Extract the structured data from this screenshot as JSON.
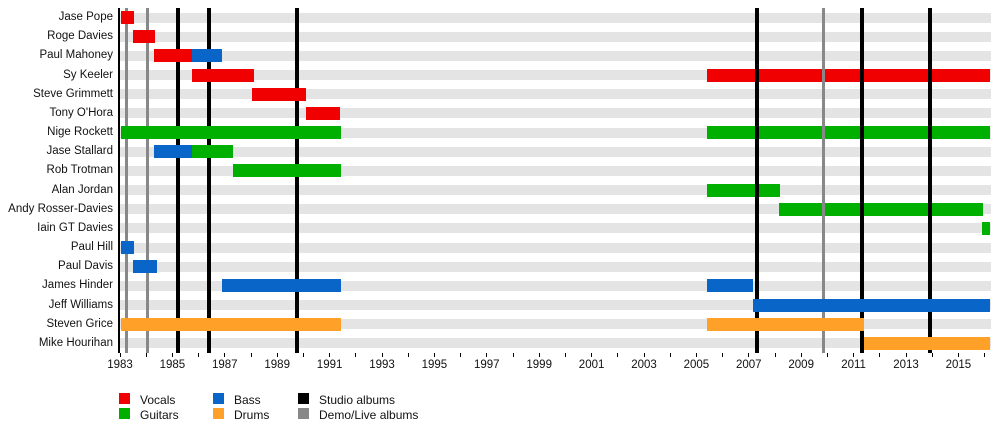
{
  "chart_data": {
    "type": "gantt",
    "subtype": "band-members-timeline",
    "title": "",
    "x_axis": {
      "tick_start": 1983,
      "tick_end": 2016,
      "tick_every_years": 1,
      "labeled_years": [
        1983,
        1985,
        1987,
        1989,
        1991,
        1993,
        1995,
        1997,
        1999,
        2001,
        2003,
        2005,
        2007,
        2009,
        2011,
        2013,
        2015
      ],
      "axis_range": [
        1983.0,
        2016.2
      ]
    },
    "roles": {
      "Vocals": "#f00000",
      "Guitars": "#00b000",
      "Bass": "#0966c8",
      "Drums": "#ffa129"
    },
    "line_colors": {
      "studio": "#000000",
      "demo_live": "#888888"
    },
    "stripe_color": "#e4e4e4",
    "members": [
      {
        "name": "Jase Pope",
        "bars": [
          {
            "from": 1983.05,
            "till": 1983.55,
            "role": "Vocals"
          }
        ]
      },
      {
        "name": "Roge Davies",
        "bars": [
          {
            "from": 1983.5,
            "till": 1984.35,
            "role": "Vocals"
          }
        ]
      },
      {
        "name": "Paul Mahoney",
        "bars": [
          {
            "from": 1984.3,
            "till": 1985.75,
            "role": "Vocals"
          },
          {
            "from": 1985.75,
            "till": 1986.9,
            "role": "Bass"
          }
        ]
      },
      {
        "name": "Sy Keeler",
        "bars": [
          {
            "from": 1985.75,
            "till": 1988.1,
            "role": "Vocals"
          },
          {
            "from": 2005.4,
            "till": 2016.2,
            "role": "Vocals"
          }
        ]
      },
      {
        "name": "Steve Grimmett",
        "bars": [
          {
            "from": 1988.05,
            "till": 1990.1,
            "role": "Vocals"
          }
        ]
      },
      {
        "name": "Tony O'Hora",
        "bars": [
          {
            "from": 1990.1,
            "till": 1991.4,
            "role": "Vocals"
          }
        ]
      },
      {
        "name": "Nige Rockett",
        "bars": [
          {
            "from": 1983.05,
            "till": 1991.45,
            "role": "Guitars"
          },
          {
            "from": 2005.4,
            "till": 2016.2,
            "role": "Guitars"
          }
        ]
      },
      {
        "name": "Jase Stallard",
        "bars": [
          {
            "from": 1984.3,
            "till": 1985.75,
            "role": "Bass"
          },
          {
            "from": 1985.75,
            "till": 1987.3,
            "role": "Guitars"
          }
        ]
      },
      {
        "name": "Rob Trotman",
        "bars": [
          {
            "from": 1987.3,
            "till": 1991.45,
            "role": "Guitars"
          }
        ]
      },
      {
        "name": "Alan Jordan",
        "bars": [
          {
            "from": 2005.4,
            "till": 2008.2,
            "role": "Guitars"
          }
        ]
      },
      {
        "name": "Andy Rosser-Davies",
        "bars": [
          {
            "from": 2008.15,
            "till": 2015.95,
            "role": "Guitars"
          }
        ]
      },
      {
        "name": "Iain GT Davies",
        "bars": [
          {
            "from": 2015.9,
            "till": 2016.2,
            "role": "Guitars"
          }
        ]
      },
      {
        "name": "Paul Hill",
        "bars": [
          {
            "from": 1983.05,
            "till": 1983.55,
            "role": "Bass"
          }
        ]
      },
      {
        "name": "Paul Davis",
        "bars": [
          {
            "from": 1983.5,
            "till": 1984.4,
            "role": "Bass"
          }
        ]
      },
      {
        "name": "James Hinder",
        "bars": [
          {
            "from": 1986.9,
            "till": 1991.45,
            "role": "Bass"
          },
          {
            "from": 2005.4,
            "till": 2007.15,
            "role": "Bass"
          }
        ]
      },
      {
        "name": "Jeff Williams",
        "bars": [
          {
            "from": 2007.15,
            "till": 2016.2,
            "role": "Bass"
          }
        ]
      },
      {
        "name": "Steven Grice",
        "bars": [
          {
            "from": 1983.05,
            "till": 1991.45,
            "role": "Drums"
          },
          {
            "from": 2005.4,
            "till": 2011.4,
            "role": "Drums"
          }
        ]
      },
      {
        "name": "Mike Hourihan",
        "bars": [
          {
            "from": 2011.4,
            "till": 2016.2,
            "role": "Drums"
          }
        ]
      }
    ],
    "album_lines": [
      {
        "year": 1983.25,
        "type": "demo_live"
      },
      {
        "year": 1984.05,
        "type": "demo_live"
      },
      {
        "year": 1985.2,
        "type": "studio"
      },
      {
        "year": 1986.4,
        "type": "studio"
      },
      {
        "year": 1989.75,
        "type": "studio"
      },
      {
        "year": 2007.3,
        "type": "studio"
      },
      {
        "year": 2009.85,
        "type": "demo_live"
      },
      {
        "year": 2011.3,
        "type": "studio"
      },
      {
        "year": 2013.9,
        "type": "studio"
      }
    ],
    "legend": {
      "columns": [
        [
          {
            "label": "Vocals",
            "color": "#f00000"
          },
          {
            "label": "Guitars",
            "color": "#00b000"
          }
        ],
        [
          {
            "label": "Bass",
            "color": "#0966c8"
          },
          {
            "label": "Drums",
            "color": "#ffa129"
          }
        ],
        [
          {
            "label": "Studio albums",
            "color": "#000000"
          },
          {
            "label": "Demo/Live albums",
            "color": "#888888"
          }
        ]
      ]
    }
  }
}
